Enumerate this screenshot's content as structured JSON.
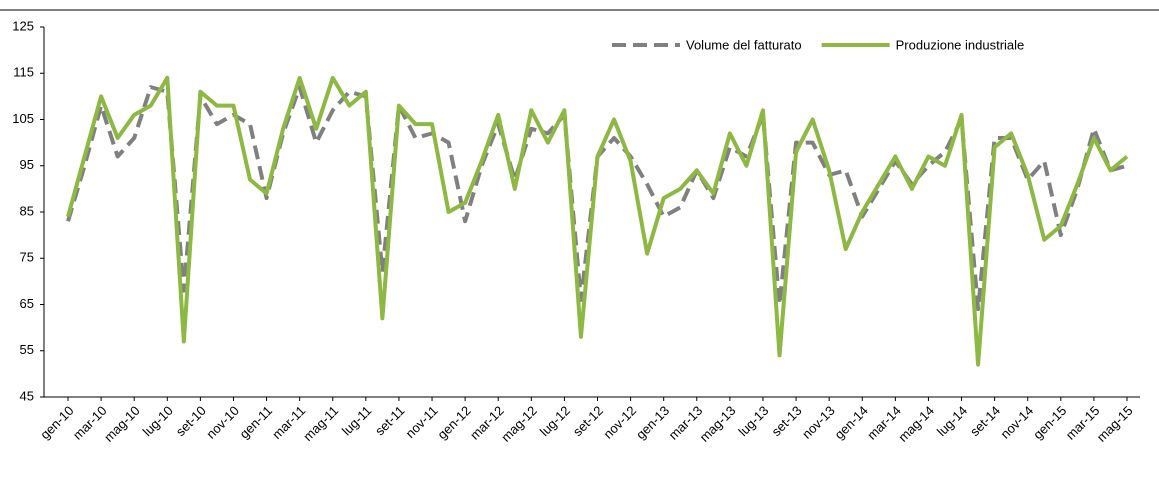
{
  "chart_data": {
    "type": "line",
    "categories": [
      "gen-10",
      null,
      "mar-10",
      null,
      "mag-10",
      null,
      "lug-10",
      null,
      "set-10",
      null,
      "nov-10",
      null,
      "gen-11",
      null,
      "mar-11",
      null,
      "mag-11",
      null,
      "lug-11",
      null,
      "set-11",
      null,
      "nov-11",
      null,
      "gen-12",
      null,
      "mar-12",
      null,
      "mag-12",
      null,
      "lug-12",
      null,
      "set-12",
      null,
      "nov-12",
      null,
      "gen-13",
      null,
      "mar-13",
      null,
      "mag-13",
      null,
      "lug-13",
      null,
      "set-13",
      null,
      "nov-13",
      null,
      "gen-14",
      null,
      "mar-14",
      null,
      "mag-14",
      null,
      "lug-14",
      null,
      "set-14",
      null,
      "nov-14",
      null,
      "gen-15",
      null,
      "mar-15",
      null,
      "mag-15"
    ],
    "series": [
      {
        "name": "Volume del fatturato",
        "color": "#808080",
        "dashed": true,
        "values": [
          83,
          95,
          108,
          97,
          101,
          112,
          111,
          68,
          110,
          104,
          106,
          104,
          88,
          102,
          112,
          100,
          107,
          111,
          110,
          72,
          108,
          101,
          102,
          100,
          83,
          95,
          104,
          92,
          103,
          102,
          106,
          66,
          97,
          101,
          97,
          91,
          84,
          86,
          94,
          88,
          99,
          97,
          106,
          65,
          100,
          100,
          93,
          94,
          84,
          90,
          96,
          91,
          95,
          98,
          105,
          64,
          101,
          101,
          92,
          96,
          80,
          90,
          103,
          94,
          95
        ]
      },
      {
        "name": "Produzione industriale",
        "color": "#8db842",
        "dashed": false,
        "values": [
          84,
          97,
          110,
          101,
          106,
          108,
          114,
          57,
          111,
          108,
          108,
          92,
          89,
          103,
          114,
          103,
          114,
          108,
          111,
          62,
          108,
          104,
          104,
          85,
          87,
          96,
          106,
          90,
          107,
          100,
          107,
          58,
          97,
          105,
          96,
          76,
          88,
          90,
          94,
          89,
          102,
          95,
          107,
          54,
          98,
          105,
          94,
          77,
          85,
          91,
          97,
          90,
          97,
          95,
          106,
          52,
          99,
          102,
          93,
          79,
          82,
          91,
          101,
          94,
          97
        ]
      }
    ],
    "ylim": [
      45,
      125
    ],
    "yticks": [
      45,
      55,
      65,
      75,
      85,
      95,
      105,
      115,
      125
    ],
    "legend": "top-right"
  }
}
